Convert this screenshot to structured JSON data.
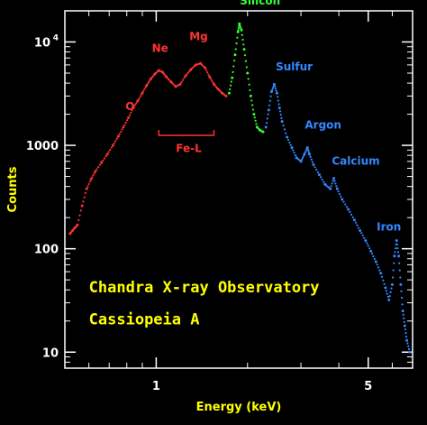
{
  "chart_data": {
    "type": "scatter",
    "xscale": "log",
    "yscale": "log",
    "xlim": [
      0.5,
      7.0
    ],
    "ylim": [
      7,
      20000
    ],
    "xlabel": "Energy (keV)",
    "ylabel": "Counts",
    "x_ticks": [
      {
        "value": 1,
        "label": "1"
      },
      {
        "value": 5,
        "label": "5"
      }
    ],
    "y_ticks": [
      {
        "value": 10,
        "label": "10"
      },
      {
        "value": 100,
        "label": "100"
      },
      {
        "value": 1000,
        "label": "1000"
      },
      {
        "value": 10000,
        "label": "10",
        "exponent": "4"
      }
    ],
    "colors": {
      "axis": "#ffffff",
      "label": "#ffff00",
      "red": "#ff3333",
      "green": "#33ff33",
      "blue": "#3388ff"
    },
    "annotations": [
      {
        "text": "O",
        "x": 0.82,
        "y": 2200,
        "color": "#ff3333"
      },
      {
        "text": "Ne",
        "x": 1.03,
        "y": 8000,
        "color": "#ff3333"
      },
      {
        "text": "Mg",
        "x": 1.38,
        "y": 10400,
        "color": "#ff3333"
      },
      {
        "text": "Fe-L",
        "x": 1.28,
        "y": 860,
        "color": "#ff3333"
      },
      {
        "text": "Silicon",
        "x": 2.2,
        "y": 23000,
        "color": "#33ff33"
      },
      {
        "text": "Sulfur",
        "x": 2.85,
        "y": 5300,
        "color": "#3388ff"
      },
      {
        "text": "Argon",
        "x": 3.55,
        "y": 1450,
        "color": "#3388ff"
      },
      {
        "text": "Calcium",
        "x": 4.55,
        "y": 650,
        "color": "#3388ff"
      },
      {
        "text": "Iron",
        "x": 5.85,
        "y": 150,
        "color": "#3388ff"
      }
    ],
    "bracket": {
      "x1": 1.02,
      "x2": 1.55,
      "y": 1250,
      "color": "#ff3333"
    },
    "text_annotations": [
      {
        "text": "Chandra X-ray Observatory",
        "x": 0.6,
        "y": 38,
        "color": "#ffff00"
      },
      {
        "text": "Cassiopeia A",
        "x": 0.6,
        "y": 18.5,
        "color": "#ffff00"
      }
    ],
    "series": [
      {
        "color": "#ff3333",
        "points": [
          [
            0.52,
            140
          ],
          [
            0.53,
            150
          ],
          [
            0.54,
            160
          ],
          [
            0.55,
            170
          ],
          [
            0.57,
            260
          ],
          [
            0.59,
            380
          ],
          [
            0.61,
            470
          ],
          [
            0.63,
            560
          ],
          [
            0.66,
            680
          ],
          [
            0.69,
            820
          ],
          [
            0.72,
            1000
          ],
          [
            0.75,
            1220
          ],
          [
            0.78,
            1500
          ],
          [
            0.81,
            1850
          ],
          [
            0.84,
            2300
          ],
          [
            0.87,
            2700
          ],
          [
            0.9,
            3200
          ],
          [
            0.93,
            3800
          ],
          [
            0.96,
            4400
          ],
          [
            0.99,
            4900
          ],
          [
            1.02,
            5300
          ],
          [
            1.05,
            5100
          ],
          [
            1.08,
            4600
          ],
          [
            1.12,
            4100
          ],
          [
            1.16,
            3700
          ],
          [
            1.2,
            3900
          ],
          [
            1.25,
            4700
          ],
          [
            1.3,
            5400
          ],
          [
            1.35,
            6000
          ],
          [
            1.4,
            6200
          ],
          [
            1.45,
            5600
          ],
          [
            1.5,
            4600
          ],
          [
            1.55,
            3900
          ],
          [
            1.6,
            3500
          ],
          [
            1.65,
            3200
          ],
          [
            1.7,
            3000
          ]
        ]
      },
      {
        "color": "#33ff33",
        "points": [
          [
            1.74,
            3200
          ],
          [
            1.78,
            4500
          ],
          [
            1.82,
            7500
          ],
          [
            1.86,
            12500
          ],
          [
            1.88,
            15000
          ],
          [
            1.91,
            13000
          ],
          [
            1.95,
            8500
          ],
          [
            2.0,
            5000
          ],
          [
            2.05,
            3000
          ],
          [
            2.1,
            2000
          ],
          [
            2.15,
            1500
          ],
          [
            2.2,
            1400
          ],
          [
            2.25,
            1350
          ]
        ]
      },
      {
        "color": "#3388ff",
        "points": [
          [
            2.3,
            1500
          ],
          [
            2.35,
            2200
          ],
          [
            2.4,
            3300
          ],
          [
            2.45,
            3900
          ],
          [
            2.5,
            3200
          ],
          [
            2.55,
            2300
          ],
          [
            2.6,
            1700
          ],
          [
            2.7,
            1200
          ],
          [
            2.8,
            950
          ],
          [
            2.9,
            760
          ],
          [
            3.0,
            700
          ],
          [
            3.08,
            820
          ],
          [
            3.15,
            950
          ],
          [
            3.2,
            820
          ],
          [
            3.3,
            650
          ],
          [
            3.45,
            520
          ],
          [
            3.6,
            420
          ],
          [
            3.75,
            380
          ],
          [
            3.85,
            480
          ],
          [
            3.95,
            380
          ],
          [
            4.1,
            300
          ],
          [
            4.3,
            240
          ],
          [
            4.5,
            190
          ],
          [
            4.7,
            150
          ],
          [
            4.9,
            120
          ],
          [
            5.1,
            95
          ],
          [
            5.3,
            75
          ],
          [
            5.5,
            58
          ],
          [
            5.7,
            42
          ],
          [
            5.85,
            32
          ],
          [
            6.0,
            45
          ],
          [
            6.1,
            85
          ],
          [
            6.2,
            120
          ],
          [
            6.3,
            85
          ],
          [
            6.4,
            45
          ],
          [
            6.5,
            25
          ],
          [
            6.6,
            18
          ],
          [
            6.7,
            13
          ],
          [
            6.85,
            10
          ]
        ]
      }
    ]
  }
}
